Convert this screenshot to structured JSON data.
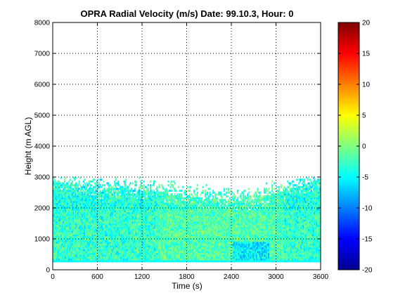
{
  "chart_data": {
    "type": "heatmap",
    "title": "OPRA Radial Velocity (m/s)  Date: 99.10.3, Hour: 0",
    "xlabel": "Time (s)",
    "ylabel": "Height (m AGL)",
    "xlim": [
      0,
      3600
    ],
    "ylim": [
      0,
      8000
    ],
    "x_ticks": [
      "0",
      "600",
      "1200",
      "1800",
      "2400",
      "3000",
      "3600"
    ],
    "y_ticks": [
      "0",
      "1000",
      "2000",
      "3000",
      "4000",
      "5000",
      "6000",
      "7000",
      "8000"
    ],
    "grid": true,
    "colorbar": {
      "colormap": "jet",
      "clim": [
        -20,
        20
      ],
      "ticks": [
        "-20",
        "-15",
        "-10",
        "-5",
        "0",
        "5",
        "10",
        "15",
        "20"
      ]
    },
    "data_summary": {
      "height_range_m": [
        250,
        3000
      ],
      "typical_velocity_range_ms": [
        -7,
        1
      ],
      "lowest_gate_velocity_ms": -5,
      "upper_boundary_height_m": [
        [
          0,
          2850
        ],
        [
          300,
          2750
        ],
        [
          600,
          2600
        ],
        [
          900,
          2650
        ],
        [
          1200,
          2550
        ],
        [
          1500,
          2500
        ],
        [
          1800,
          2350
        ],
        [
          2100,
          2300
        ],
        [
          2400,
          2200
        ],
        [
          2700,
          2250
        ],
        [
          3000,
          2500
        ],
        [
          3300,
          2700
        ],
        [
          3600,
          2950
        ]
      ]
    }
  }
}
